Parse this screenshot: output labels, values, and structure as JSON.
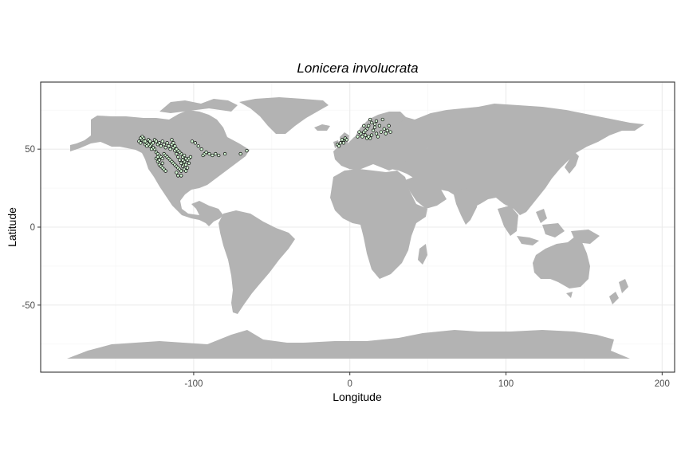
{
  "chart_data": {
    "type": "scatter",
    "title": "Lonicera involucrata",
    "xlabel": "Longitude",
    "ylabel": "Latitude",
    "xlim": [
      -198,
      208
    ],
    "ylim": [
      -93,
      93
    ],
    "x_ticks": [
      -100,
      0,
      100,
      200
    ],
    "x_tick_labels": [
      "-100",
      "0",
      "100",
      "200"
    ],
    "y_ticks": [
      -50,
      0,
      50
    ],
    "y_tick_labels": [
      "-50",
      "0",
      "50"
    ],
    "grid": true,
    "land_color": "#b3b3b3",
    "point_fill": "#d8ffd8",
    "point_stroke": "#000000",
    "series": [
      {
        "points": [
          [
            -135,
            55
          ],
          [
            -134,
            54
          ],
          [
            -133,
            56
          ],
          [
            -132,
            55
          ],
          [
            -131,
            53
          ],
          [
            -130,
            54
          ],
          [
            -129,
            56
          ],
          [
            -128,
            55
          ],
          [
            -127,
            53
          ],
          [
            -126,
            54
          ],
          [
            -125,
            56
          ],
          [
            -124,
            55
          ],
          [
            -123,
            53
          ],
          [
            -122,
            54
          ],
          [
            -121,
            52
          ],
          [
            -120,
            55
          ],
          [
            -119,
            53
          ],
          [
            -118,
            51
          ],
          [
            -117,
            54
          ],
          [
            -116,
            52
          ],
          [
            -115,
            50
          ],
          [
            -114,
            53
          ],
          [
            -113,
            51
          ],
          [
            -112,
            49
          ],
          [
            -111,
            47
          ],
          [
            -110,
            45
          ],
          [
            -109,
            43
          ],
          [
            -108,
            41
          ],
          [
            -107,
            39
          ],
          [
            -106,
            37
          ],
          [
            -105,
            36
          ],
          [
            -104,
            38
          ],
          [
            -103,
            41
          ],
          [
            -124,
            48
          ],
          [
            -123,
            47
          ],
          [
            -122,
            46
          ],
          [
            -121,
            45
          ],
          [
            -120,
            44
          ],
          [
            -119,
            47
          ],
          [
            -118,
            46
          ],
          [
            -117,
            45
          ],
          [
            -116,
            44
          ],
          [
            -115,
            43
          ],
          [
            -114,
            42
          ],
          [
            -113,
            41
          ],
          [
            -112,
            40
          ],
          [
            -111,
            39
          ],
          [
            -110,
            38
          ],
          [
            -109,
            37
          ],
          [
            -108,
            36
          ],
          [
            -124,
            44
          ],
          [
            -123,
            42
          ],
          [
            -122,
            40
          ],
          [
            -121,
            39
          ],
          [
            -120,
            38
          ],
          [
            -119,
            37
          ],
          [
            -118,
            36
          ],
          [
            -123,
            45
          ],
          [
            -122,
            43
          ],
          [
            -120,
            41
          ],
          [
            -125,
            50
          ],
          [
            -126,
            51
          ],
          [
            -127,
            50
          ],
          [
            -128,
            52
          ],
          [
            -129,
            53
          ],
          [
            -130,
            52
          ],
          [
            -131,
            55
          ],
          [
            -132,
            57
          ],
          [
            -133,
            58
          ],
          [
            -134,
            57
          ],
          [
            -107,
            45
          ],
          [
            -106,
            46
          ],
          [
            -105,
            44
          ],
          [
            -108,
            47
          ],
          [
            -109,
            48
          ],
          [
            -110,
            49
          ],
          [
            -111,
            50
          ],
          [
            -112,
            52
          ],
          [
            -113,
            54
          ],
          [
            -114,
            56
          ],
          [
            -106,
            40
          ],
          [
            -105,
            40
          ],
          [
            -106,
            42
          ],
          [
            -107,
            43
          ],
          [
            -104,
            43
          ],
          [
            -103,
            44
          ],
          [
            -102,
            45
          ],
          [
            -110,
            33
          ],
          [
            -108,
            33
          ],
          [
            -111,
            35
          ],
          [
            -94,
            46
          ],
          [
            -93,
            47
          ],
          [
            -92,
            48
          ],
          [
            -90,
            47
          ],
          [
            -88,
            46
          ],
          [
            -86,
            47
          ],
          [
            -84,
            46
          ],
          [
            -80,
            47
          ],
          [
            -70,
            47
          ],
          [
            -66,
            49
          ],
          [
            -95,
            50
          ],
          [
            -97,
            52
          ],
          [
            -99,
            54
          ],
          [
            -101,
            55
          ],
          [
            -8,
            53
          ],
          [
            -6,
            54
          ],
          [
            -4,
            55
          ],
          [
            -3,
            57
          ],
          [
            -5,
            56
          ],
          [
            -4,
            54
          ],
          [
            -7,
            52
          ],
          [
            -2,
            56
          ],
          [
            5,
            58
          ],
          [
            7,
            60
          ],
          [
            9,
            61
          ],
          [
            10,
            59
          ],
          [
            11,
            63
          ],
          [
            12,
            65
          ],
          [
            14,
            67
          ],
          [
            16,
            66
          ],
          [
            15,
            62
          ],
          [
            17,
            60
          ],
          [
            18,
            58
          ],
          [
            20,
            61
          ],
          [
            22,
            63
          ],
          [
            24,
            62
          ],
          [
            25,
            65
          ],
          [
            13,
            57
          ],
          [
            11,
            57
          ],
          [
            8,
            58
          ],
          [
            6,
            61
          ],
          [
            9,
            65
          ],
          [
            13,
            69
          ],
          [
            17,
            68
          ],
          [
            21,
            69
          ],
          [
            23,
            60
          ],
          [
            26,
            61
          ],
          [
            14,
            59
          ],
          [
            12,
            58
          ],
          [
            16,
            64
          ],
          [
            19,
            65
          ],
          [
            10,
            62
          ]
        ]
      }
    ]
  }
}
